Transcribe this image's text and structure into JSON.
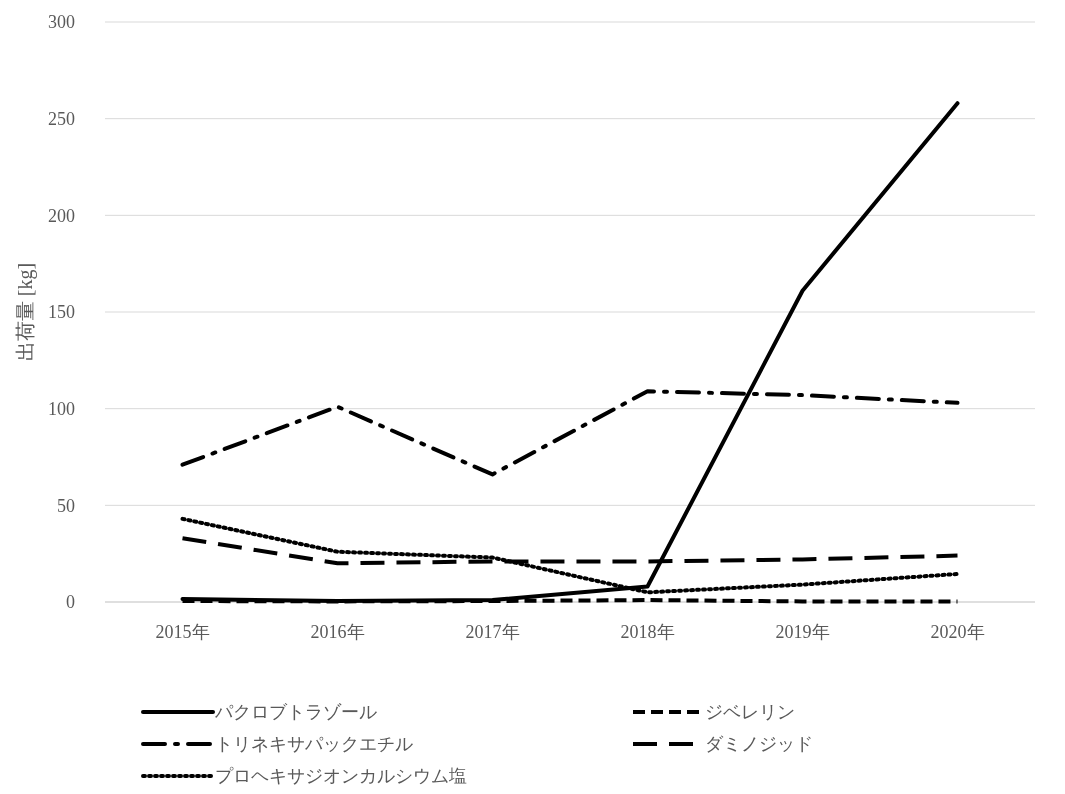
{
  "chart_data": {
    "type": "line",
    "ylabel": "出荷量 [kg]",
    "categories": [
      "2015年",
      "2016年",
      "2017年",
      "2018年",
      "2019年",
      "2020年"
    ],
    "ylim": [
      0,
      300
    ],
    "yticks": [
      0,
      50,
      100,
      150,
      200,
      250,
      300
    ],
    "grid": "y",
    "legend": "bottom",
    "marker": "none",
    "series": [
      {
        "name": "パクロブトラゾール",
        "color": "#000000",
        "line_style": "solid",
        "values": [
          1.5,
          0.5,
          1,
          8,
          161,
          258
        ]
      },
      {
        "name": "ジベレリン",
        "color": "#000000",
        "line_style": "dashed",
        "values": [
          0.5,
          0.3,
          0.5,
          1,
          0.3,
          0.2
        ]
      },
      {
        "name": "トリネキサパックエチル",
        "color": "#000000",
        "line_style": "dashdot",
        "values": [
          71,
          101,
          66,
          109,
          107,
          103
        ]
      },
      {
        "name": "ダミノジッド",
        "color": "#000000",
        "line_style": "longdash",
        "values": [
          33,
          20,
          21,
          21,
          22,
          24
        ]
      },
      {
        "name": "プロヘキサジオンカルシウム塩",
        "color": "#000000",
        "line_style": "dotted",
        "values": [
          43,
          26,
          23,
          5,
          9,
          14.5
        ]
      }
    ]
  }
}
